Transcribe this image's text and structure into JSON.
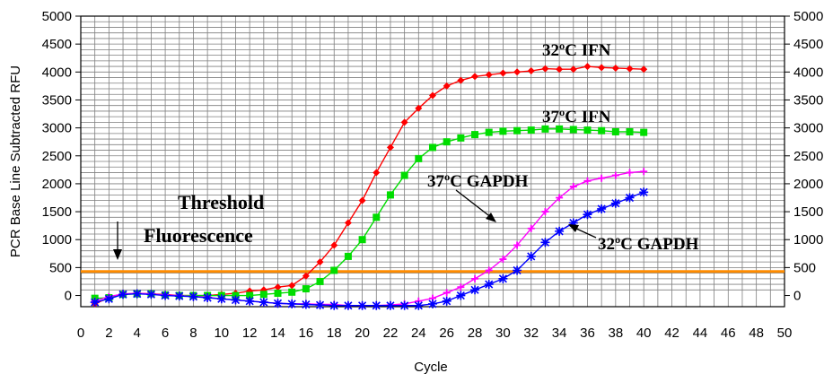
{
  "chart_data": {
    "type": "line",
    "xlabel": "Cycle",
    "ylabel": "PCR Base Line Subtracted RFU",
    "xlim": [
      0,
      50
    ],
    "ylim": [
      -200,
      5000
    ],
    "x_ticks": [
      "0",
      "2",
      "4",
      "6",
      "8",
      "10",
      "12",
      "14",
      "16",
      "18",
      "20",
      "22",
      "24",
      "26",
      "28",
      "30",
      "32",
      "34",
      "36",
      "38",
      "40",
      "42",
      "44",
      "46",
      "48",
      "50"
    ],
    "y_ticks": [
      "0",
      "500",
      "1000",
      "1500",
      "2000",
      "2500",
      "3000",
      "3500",
      "4000",
      "4500",
      "5000"
    ],
    "grid": true,
    "threshold": {
      "value": 430,
      "color": "#ff8c00"
    },
    "threshold_label": [
      "Threshold",
      "Fluorescence"
    ],
    "series": [
      {
        "name": "32ºC IFN",
        "color": "#ff0000",
        "marker": "diamond",
        "x": [
          1,
          2,
          3,
          4,
          5,
          6,
          7,
          8,
          9,
          10,
          11,
          12,
          13,
          14,
          15,
          16,
          17,
          18,
          19,
          20,
          21,
          22,
          23,
          24,
          25,
          26,
          27,
          28,
          29,
          30,
          31,
          32,
          33,
          34,
          35,
          36,
          37,
          38,
          39,
          40
        ],
        "values": [
          -150,
          -40,
          20,
          40,
          30,
          20,
          0,
          0,
          0,
          20,
          40,
          80,
          100,
          150,
          180,
          350,
          600,
          900,
          1300,
          1700,
          2200,
          2650,
          3100,
          3350,
          3580,
          3750,
          3850,
          3920,
          3950,
          3980,
          4000,
          4020,
          4060,
          4050,
          4050,
          4100,
          4080,
          4070,
          4060,
          4050
        ]
      },
      {
        "name": "37ºC IFN",
        "color": "#00dd00",
        "marker": "square",
        "x": [
          1,
          2,
          3,
          4,
          5,
          6,
          7,
          8,
          9,
          10,
          11,
          12,
          13,
          14,
          15,
          16,
          17,
          18,
          19,
          20,
          21,
          22,
          23,
          24,
          25,
          26,
          27,
          28,
          29,
          30,
          31,
          32,
          33,
          34,
          35,
          36,
          37,
          38,
          39,
          40
        ],
        "values": [
          -50,
          -40,
          20,
          30,
          30,
          10,
          0,
          0,
          0,
          0,
          0,
          0,
          20,
          40,
          60,
          120,
          250,
          450,
          700,
          1000,
          1400,
          1800,
          2150,
          2450,
          2650,
          2750,
          2820,
          2880,
          2920,
          2940,
          2950,
          2960,
          2980,
          2980,
          2970,
          2960,
          2950,
          2930,
          2930,
          2920
        ]
      },
      {
        "name": "37ºC GAPDH",
        "color": "#ff00ff",
        "marker": "plus",
        "x": [
          1,
          2,
          3,
          4,
          5,
          6,
          7,
          8,
          9,
          10,
          11,
          12,
          13,
          14,
          15,
          16,
          17,
          18,
          19,
          20,
          21,
          22,
          23,
          24,
          25,
          26,
          27,
          28,
          29,
          30,
          31,
          32,
          33,
          34,
          35,
          36,
          37,
          38,
          39,
          40
        ],
        "values": [
          -100,
          -20,
          30,
          40,
          30,
          10,
          0,
          -20,
          -30,
          -60,
          -80,
          -100,
          -120,
          -140,
          -150,
          -150,
          -160,
          -160,
          -180,
          -180,
          -180,
          -170,
          -150,
          -100,
          -50,
          50,
          150,
          300,
          450,
          650,
          900,
          1200,
          1500,
          1750,
          1950,
          2050,
          2100,
          2150,
          2200,
          2220
        ]
      },
      {
        "name": "32ºC GAPDH",
        "color": "#0000ff",
        "marker": "star",
        "x": [
          1,
          2,
          3,
          4,
          5,
          6,
          7,
          8,
          9,
          10,
          11,
          12,
          13,
          14,
          15,
          16,
          17,
          18,
          19,
          20,
          21,
          22,
          23,
          24,
          25,
          26,
          27,
          28,
          29,
          30,
          31,
          32,
          33,
          34,
          35,
          36,
          37,
          38,
          39,
          40
        ],
        "values": [
          -120,
          -60,
          20,
          30,
          20,
          0,
          -10,
          -20,
          -40,
          -60,
          -80,
          -100,
          -120,
          -140,
          -150,
          -160,
          -170,
          -180,
          -190,
          -190,
          -190,
          -190,
          -190,
          -180,
          -150,
          -100,
          0,
          100,
          200,
          300,
          450,
          700,
          950,
          1150,
          1300,
          1450,
          1550,
          1650,
          1750,
          1850
        ]
      }
    ],
    "annotations": [
      "32ºC IFN",
      "37ºC IFN",
      "37ºC GAPDH",
      "32ºC GAPDH"
    ]
  }
}
